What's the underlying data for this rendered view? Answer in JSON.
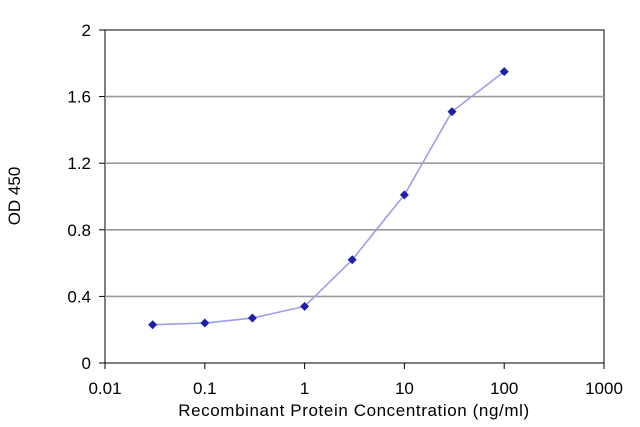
{
  "chart_data": {
    "type": "line",
    "title": "",
    "xlabel": "Recombinant Protein Concentration (ng/ml)",
    "ylabel": "OD 450",
    "x_scale": "log",
    "xlim": [
      0.01,
      1000
    ],
    "ylim": [
      0,
      2
    ],
    "x_ticks": [
      0.01,
      0.1,
      1,
      10,
      100,
      1000
    ],
    "x_tick_labels": [
      "0.01",
      "0.1",
      "1",
      "10",
      "100",
      "1000"
    ],
    "y_ticks": [
      0,
      0.4,
      0.8,
      1.2,
      1.6,
      2
    ],
    "y_tick_labels": [
      "0",
      "0.4",
      "0.8",
      "1.2",
      "1.6",
      "2"
    ],
    "grid": {
      "horizontal": true,
      "vertical": false
    },
    "legend": "none",
    "series": [
      {
        "x": [
          0.03,
          0.1,
          0.3,
          1,
          3,
          10,
          30,
          100
        ],
        "y": [
          0.23,
          0.24,
          0.27,
          0.34,
          0.62,
          1.01,
          1.51,
          1.75
        ],
        "line_color": "#9f9fe6",
        "marker_color": "#1f1faa"
      }
    ]
  }
}
